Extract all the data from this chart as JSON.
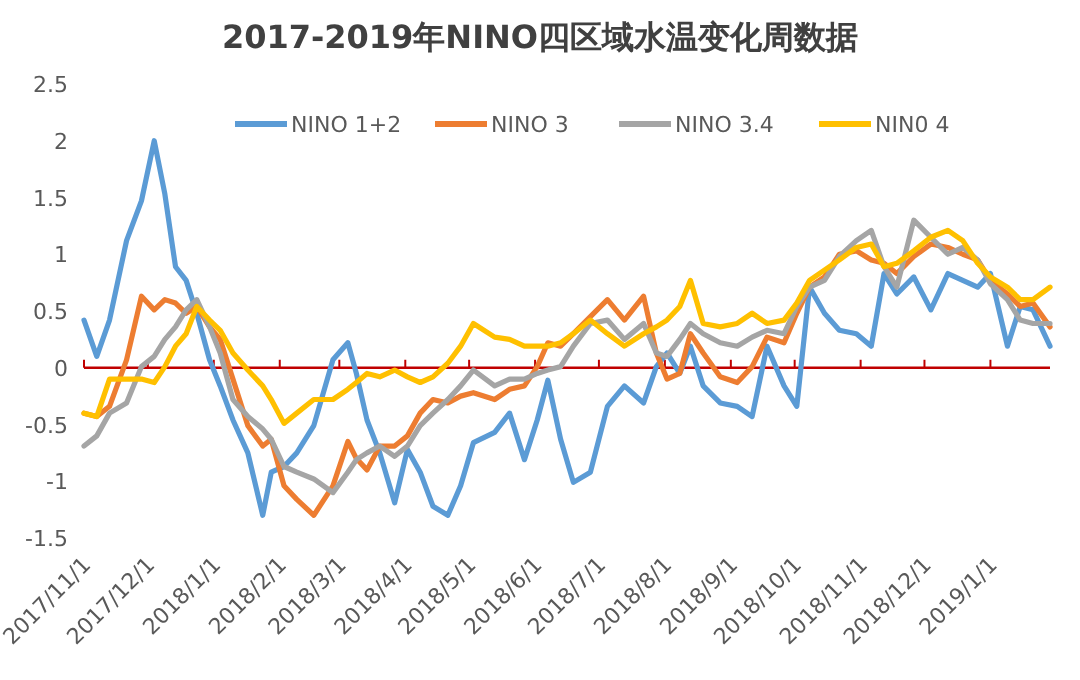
{
  "chart_data": {
    "type": "line",
    "title": "2017-2019年NINO四区域水温变化周数据",
    "x": [
      "2017-11-01",
      "2017-11-07",
      "2017-11-13",
      "2017-11-21",
      "2017-11-28",
      "2017-12-04",
      "2017-12-09",
      "2017-12-14",
      "2017-12-19",
      "2017-12-24",
      "2017-12-30",
      "2018-01-04",
      "2018-01-10",
      "2018-01-17",
      "2018-01-24",
      "2018-01-28",
      "2018-02-03",
      "2018-02-09",
      "2018-02-17",
      "2018-02-26",
      "2018-03-05",
      "2018-03-09",
      "2018-03-14",
      "2018-03-20",
      "2018-03-27",
      "2018-04-02",
      "2018-04-08",
      "2018-04-14",
      "2018-04-21",
      "2018-04-27",
      "2018-05-03",
      "2018-05-13",
      "2018-05-20",
      "2018-05-27",
      "2018-06-02",
      "2018-06-07",
      "2018-06-13",
      "2018-06-19",
      "2018-06-27",
      "2018-07-05",
      "2018-07-13",
      "2018-07-22",
      "2018-07-28",
      "2018-08-02",
      "2018-08-08",
      "2018-08-13",
      "2018-08-19",
      "2018-08-27",
      "2018-09-04",
      "2018-09-11",
      "2018-09-18",
      "2018-09-26",
      "2018-10-02",
      "2018-10-08",
      "2018-10-15",
      "2018-10-22",
      "2018-10-30",
      "2018-11-06",
      "2018-11-12",
      "2018-11-18",
      "2018-11-26",
      "2018-12-04",
      "2018-12-12",
      "2018-12-19",
      "2018-12-26",
      "2019-01-01",
      "2019-01-09",
      "2019-01-15",
      "2019-01-21",
      "2019-01-29"
    ],
    "series": [
      {
        "name": "NINO 1+2",
        "color": "#5b9bd5",
        "values": [
          0.42,
          0.1,
          0.42,
          1.12,
          1.47,
          2.0,
          1.53,
          0.89,
          0.77,
          0.48,
          0.07,
          -0.16,
          -0.46,
          -0.75,
          -1.3,
          -0.92,
          -0.87,
          -0.75,
          -0.51,
          0.07,
          0.22,
          -0.05,
          -0.46,
          -0.75,
          -1.19,
          -0.72,
          -0.92,
          -1.22,
          -1.3,
          -1.04,
          -0.66,
          -0.57,
          -0.4,
          -0.81,
          -0.46,
          -0.11,
          -0.63,
          -1.01,
          -0.92,
          -0.34,
          -0.16,
          -0.31,
          0.01,
          0.13,
          -0.05,
          0.19,
          -0.16,
          -0.31,
          -0.34,
          -0.43,
          0.19,
          -0.16,
          -0.34,
          0.71,
          0.48,
          0.33,
          0.3,
          0.19,
          0.83,
          0.65,
          0.8,
          0.51,
          0.83,
          0.77,
          0.71,
          0.83,
          0.19,
          0.54,
          0.51,
          0.19
        ]
      },
      {
        "name": "NINO 3",
        "color": "#ed7d31",
        "values": [
          -0.4,
          -0.43,
          -0.34,
          0.07,
          0.63,
          0.51,
          0.6,
          0.57,
          0.48,
          0.54,
          0.36,
          0.25,
          -0.1,
          -0.51,
          -0.69,
          -0.63,
          -1.04,
          -1.16,
          -1.3,
          -1.04,
          -0.65,
          -0.8,
          -0.9,
          -0.69,
          -0.69,
          -0.6,
          -0.4,
          -0.28,
          -0.31,
          -0.25,
          -0.22,
          -0.28,
          -0.19,
          -0.16,
          0.01,
          0.22,
          0.19,
          0.3,
          0.45,
          0.6,
          0.42,
          0.63,
          0.13,
          -0.1,
          -0.05,
          0.3,
          0.13,
          -0.08,
          -0.13,
          0.01,
          0.27,
          0.22,
          0.48,
          0.71,
          0.8,
          1.0,
          1.03,
          0.95,
          0.92,
          0.83,
          0.98,
          1.09,
          1.06,
          1.0,
          0.95,
          0.77,
          0.65,
          0.54,
          0.57,
          0.36
        ]
      },
      {
        "name": "NINO 3.4",
        "color": "#a5a5a5",
        "values": [
          -0.69,
          -0.6,
          -0.4,
          -0.31,
          0.01,
          0.1,
          0.25,
          0.36,
          0.51,
          0.6,
          0.36,
          0.13,
          -0.28,
          -0.43,
          -0.54,
          -0.63,
          -0.87,
          -0.92,
          -0.98,
          -1.1,
          -0.92,
          -0.81,
          -0.75,
          -0.69,
          -0.78,
          -0.69,
          -0.51,
          -0.4,
          -0.28,
          -0.16,
          -0.02,
          -0.16,
          -0.1,
          -0.1,
          -0.05,
          -0.02,
          0.01,
          0.19,
          0.39,
          0.42,
          0.25,
          0.39,
          0.13,
          0.1,
          0.25,
          0.39,
          0.3,
          0.22,
          0.19,
          0.27,
          0.33,
          0.3,
          0.54,
          0.71,
          0.77,
          0.98,
          1.12,
          1.21,
          0.89,
          0.71,
          1.3,
          1.15,
          1.0,
          1.06,
          0.95,
          0.74,
          0.6,
          0.42,
          0.39,
          0.39
        ]
      },
      {
        "name": "NIN0 4",
        "color": "#ffc000",
        "values": [
          -0.4,
          -0.43,
          -0.1,
          -0.1,
          -0.1,
          -0.13,
          0.01,
          0.19,
          0.3,
          0.54,
          0.42,
          0.33,
          0.13,
          -0.02,
          -0.16,
          -0.28,
          -0.49,
          -0.4,
          -0.28,
          -0.28,
          -0.19,
          -0.13,
          -0.05,
          -0.08,
          -0.02,
          -0.08,
          -0.13,
          -0.08,
          0.04,
          0.19,
          0.39,
          0.27,
          0.25,
          0.19,
          0.19,
          0.19,
          0.22,
          0.3,
          0.42,
          0.3,
          0.19,
          0.3,
          0.36,
          0.42,
          0.54,
          0.77,
          0.39,
          0.36,
          0.39,
          0.48,
          0.39,
          0.42,
          0.57,
          0.77,
          0.86,
          0.95,
          1.06,
          1.09,
          0.89,
          0.92,
          1.03,
          1.15,
          1.21,
          1.12,
          0.92,
          0.8,
          0.71,
          0.6,
          0.6,
          0.71
        ]
      }
    ],
    "xlim": [
      "2017-11-01",
      "2019-01-29"
    ],
    "xticks": [
      {
        "value": "2017-11-01",
        "label": "2017/11/1"
      },
      {
        "value": "2017-12-01",
        "label": "2017/12/1"
      },
      {
        "value": "2018-01-01",
        "label": "2018/1/1"
      },
      {
        "value": "2018-02-01",
        "label": "2018/2/1"
      },
      {
        "value": "2018-03-01",
        "label": "2018/3/1"
      },
      {
        "value": "2018-04-01",
        "label": "2018/4/1"
      },
      {
        "value": "2018-05-01",
        "label": "2018/5/1"
      },
      {
        "value": "2018-06-01",
        "label": "2018/6/1"
      },
      {
        "value": "2018-07-01",
        "label": "2018/7/1"
      },
      {
        "value": "2018-08-01",
        "label": "2018/8/1"
      },
      {
        "value": "2018-09-01",
        "label": "2018/9/1"
      },
      {
        "value": "2018-10-01",
        "label": "2018/10/1"
      },
      {
        "value": "2018-11-01",
        "label": "2018/11/1"
      },
      {
        "value": "2018-12-01",
        "label": "2018/12/1"
      },
      {
        "value": "2019-01-01",
        "label": "2019/1/1"
      }
    ],
    "ylim": [
      -1.5,
      2.5
    ],
    "yticks": [
      -1.5,
      -1,
      -0.5,
      0,
      0.5,
      1,
      1.5,
      2,
      2.5
    ],
    "ref_lines": [
      {
        "axis": "y",
        "value": 0,
        "color": "#c00000"
      }
    ],
    "legend": "top"
  }
}
